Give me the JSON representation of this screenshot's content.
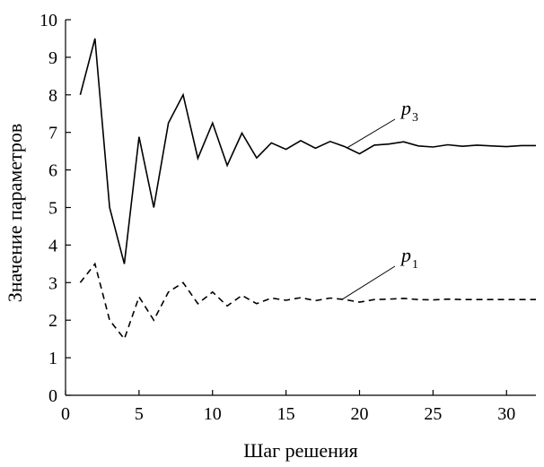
{
  "chart_data": {
    "type": "line",
    "title": "",
    "xlabel": "Шаг решения",
    "ylabel": "Значение параметров",
    "xlim": [
      0,
      32
    ],
    "ylim": [
      0,
      10
    ],
    "x_ticks": [
      0,
      5,
      10,
      15,
      20,
      25,
      30
    ],
    "y_ticks": [
      0,
      1,
      2,
      3,
      4,
      5,
      6,
      7,
      8,
      9,
      10
    ],
    "grid": false,
    "legend": "none",
    "series": [
      {
        "name": "p3",
        "label_main": "p",
        "label_sub": "3",
        "line_style": "solid",
        "color": "#000000",
        "x": [
          1,
          2,
          3,
          4,
          5,
          6,
          7,
          8,
          9,
          10,
          11,
          12,
          13,
          14,
          15,
          16,
          17,
          18,
          19,
          20,
          21,
          22,
          23,
          24,
          25,
          26,
          27,
          28,
          29,
          30,
          31,
          32
        ],
        "y": [
          8.0,
          9.5,
          5.0,
          3.5,
          6.88,
          5.0,
          7.25,
          8.0,
          6.31,
          7.25,
          6.12,
          6.98,
          6.32,
          6.72,
          6.55,
          6.78,
          6.58,
          6.76,
          6.62,
          6.43,
          6.66,
          6.69,
          6.75,
          6.64,
          6.61,
          6.67,
          6.63,
          6.66,
          6.64,
          6.62,
          6.65,
          6.65
        ]
      },
      {
        "name": "p1",
        "label_main": "p",
        "label_sub": "1",
        "line_style": "dashed",
        "color": "#000000",
        "x": [
          1,
          2,
          3,
          4,
          5,
          6,
          7,
          8,
          9,
          10,
          11,
          12,
          13,
          14,
          15,
          16,
          17,
          18,
          19,
          20,
          21,
          22,
          23,
          24,
          25,
          26,
          27,
          28,
          29,
          30,
          31,
          32
        ],
        "y": [
          3.0,
          3.5,
          2.0,
          1.5,
          2.62,
          2.0,
          2.75,
          3.0,
          2.44,
          2.75,
          2.38,
          2.66,
          2.44,
          2.59,
          2.53,
          2.6,
          2.52,
          2.59,
          2.55,
          2.48,
          2.55,
          2.56,
          2.58,
          2.55,
          2.54,
          2.56,
          2.55,
          2.55,
          2.55,
          2.55,
          2.55,
          2.55
        ]
      }
    ]
  }
}
